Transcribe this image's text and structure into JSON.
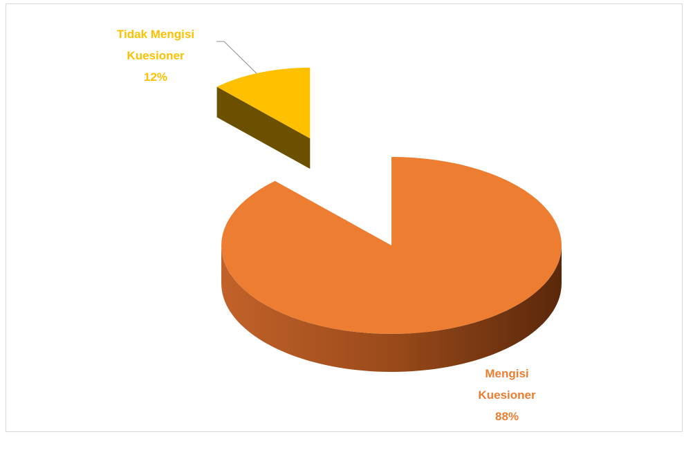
{
  "chart_data": {
    "type": "pie",
    "categories": [
      "Mengisi Kuesioner",
      "Tidak Mengisi Kuesioner"
    ],
    "values": [
      88,
      12
    ],
    "value_labels": [
      "88%",
      "12%"
    ],
    "colors": [
      "#ED7D31",
      "#FFC000"
    ],
    "exploded": [
      false,
      true
    ]
  }
}
